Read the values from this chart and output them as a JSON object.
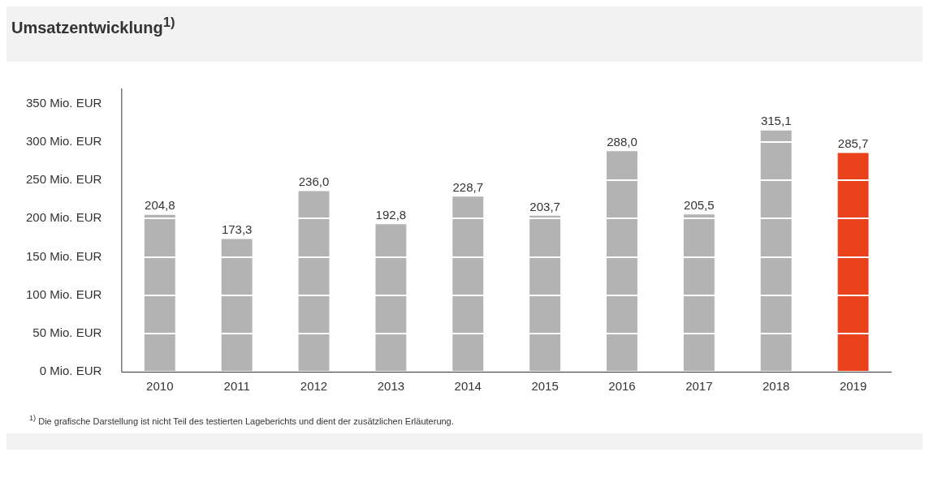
{
  "chart_data": {
    "type": "bar",
    "title": "Umsatzentwicklung$^{1)}$",
    "categories": [
      "2010",
      "2011",
      "2012",
      "2013",
      "2014",
      "2015",
      "2016",
      "2017",
      "2018",
      "2019"
    ],
    "values": [
      204.8,
      173.3,
      236.0,
      192.8,
      228.7,
      203.7,
      288.0,
      205.5,
      315.1,
      285.7
    ],
    "colors": [
      "#b3b3b3",
      "#b3b3b3",
      "#b3b3b3",
      "#b3b3b3",
      "#b3b3b3",
      "#b3b3b3",
      "#b3b3b3",
      "#b3b3b3",
      "#b3b3b3",
      "#e8411b"
    ],
    "value_labels": [
      "204,8",
      "173,3",
      "236,0",
      "192,8",
      "228,7",
      "203,7",
      "288,0",
      "205,5",
      "315,1",
      "285,7"
    ],
    "ylim": [
      0,
      370
    ],
    "yticks": [
      {
        "value": 0,
        "label": "0 Mio. EUR"
      },
      {
        "value": 50,
        "label": "50 Mio. EUR"
      },
      {
        "value": 100,
        "label": "100 Mio. EUR"
      },
      {
        "value": 150,
        "label": "150 Mio. EUR"
      },
      {
        "value": 200,
        "label": "200 Mio. EUR"
      },
      {
        "value": 250,
        "label": "250 Mio. EUR"
      },
      {
        "value": 300,
        "label": "300 Mio. EUR"
      },
      {
        "value": 350,
        "label": "350 Mio. EUR"
      }
    ],
    "grid": "y",
    "legend": false,
    "annotations": [
      "$^{1)}$ Die grafische Darstellung ist nicht Teil des testierten Lageberichts und dient der zusätzlichen Erläuterung."
    ]
  }
}
